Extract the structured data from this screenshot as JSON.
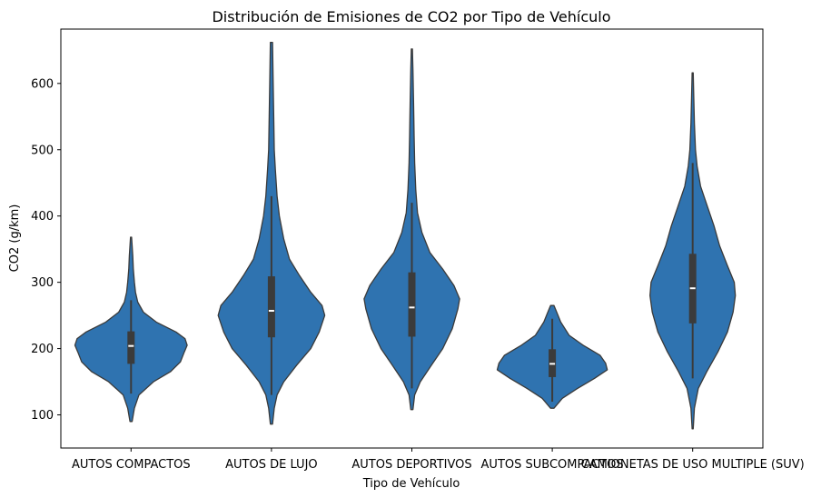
{
  "chart_data": {
    "type": "violin",
    "title": "Distribución de Emisiones de CO2 por Tipo de Vehículo",
    "xlabel": "Tipo de Vehículo",
    "ylabel": "CO2 (g/km)",
    "ylim": [
      50,
      682
    ],
    "yticks": [
      100,
      200,
      300,
      400,
      500,
      600
    ],
    "grid": false,
    "legend": "none",
    "colors": {
      "violin_fill": "#2f73b0",
      "violin_edge": "#3a3a3a",
      "box": "#3b3b3b",
      "median": "#ffffff"
    },
    "categories": [
      "AUTOS COMPACTOS",
      "AUTOS DE LUJO",
      "AUTOS DEPORTIVOS",
      "AUTOS SUBCOMPACTOS",
      "CAMIONETAS DE USO MULTIPLE (SUV)"
    ],
    "distributions": [
      {
        "category": "AUTOS COMPACTOS",
        "min": 90,
        "q1": 177,
        "median": 204,
        "q3": 226,
        "max": 368,
        "whisker_low": 132,
        "whisker_high": 273,
        "density": [
          [
            90,
            0.02
          ],
          [
            110,
            0.06
          ],
          [
            130,
            0.14
          ],
          [
            150,
            0.4
          ],
          [
            165,
            0.7
          ],
          [
            180,
            0.88
          ],
          [
            195,
            0.95
          ],
          [
            205,
            1.0
          ],
          [
            215,
            0.96
          ],
          [
            225,
            0.8
          ],
          [
            240,
            0.45
          ],
          [
            255,
            0.22
          ],
          [
            270,
            0.12
          ],
          [
            285,
            0.08
          ],
          [
            300,
            0.06
          ],
          [
            320,
            0.04
          ],
          [
            340,
            0.03
          ],
          [
            368,
            0.01
          ]
        ]
      },
      {
        "category": "AUTOS DE LUJO",
        "min": 86,
        "q1": 217,
        "median": 257,
        "q3": 309,
        "max": 662,
        "whisker_low": 130,
        "whisker_high": 430,
        "density": [
          [
            86,
            0.02
          ],
          [
            110,
            0.05
          ],
          [
            130,
            0.1
          ],
          [
            150,
            0.22
          ],
          [
            175,
            0.45
          ],
          [
            200,
            0.7
          ],
          [
            225,
            0.85
          ],
          [
            250,
            0.95
          ],
          [
            265,
            0.9
          ],
          [
            285,
            0.7
          ],
          [
            310,
            0.5
          ],
          [
            335,
            0.32
          ],
          [
            365,
            0.22
          ],
          [
            400,
            0.14
          ],
          [
            430,
            0.1
          ],
          [
            470,
            0.07
          ],
          [
            500,
            0.05
          ],
          [
            550,
            0.04
          ],
          [
            600,
            0.03
          ],
          [
            662,
            0.02
          ]
        ]
      },
      {
        "category": "AUTOS DEPORTIVOS",
        "min": 108,
        "q1": 218,
        "median": 262,
        "q3": 315,
        "max": 652,
        "whisker_low": 140,
        "whisker_high": 420,
        "density": [
          [
            108,
            0.02
          ],
          [
            130,
            0.05
          ],
          [
            150,
            0.15
          ],
          [
            175,
            0.35
          ],
          [
            200,
            0.55
          ],
          [
            230,
            0.72
          ],
          [
            260,
            0.82
          ],
          [
            275,
            0.85
          ],
          [
            295,
            0.75
          ],
          [
            320,
            0.55
          ],
          [
            345,
            0.32
          ],
          [
            375,
            0.18
          ],
          [
            405,
            0.1
          ],
          [
            440,
            0.07
          ],
          [
            480,
            0.05
          ],
          [
            520,
            0.04
          ],
          [
            570,
            0.03
          ],
          [
            620,
            0.02
          ],
          [
            652,
            0.01
          ]
        ]
      },
      {
        "category": "AUTOS SUBCOMPACTOS",
        "min": 110,
        "q1": 157,
        "median": 177,
        "q3": 199,
        "max": 265,
        "whisker_low": 120,
        "whisker_high": 245,
        "density": [
          [
            110,
            0.03
          ],
          [
            125,
            0.18
          ],
          [
            140,
            0.45
          ],
          [
            155,
            0.75
          ],
          [
            168,
            0.98
          ],
          [
            178,
            0.95
          ],
          [
            190,
            0.85
          ],
          [
            205,
            0.55
          ],
          [
            220,
            0.3
          ],
          [
            240,
            0.15
          ],
          [
            255,
            0.08
          ],
          [
            265,
            0.03
          ]
        ]
      },
      {
        "category": "CAMIONETAS DE USO MULTIPLE (SUV)",
        "min": 79,
        "q1": 238,
        "median": 291,
        "q3": 343,
        "max": 616,
        "whisker_low": 155,
        "whisker_high": 480,
        "density": [
          [
            79,
            0.01
          ],
          [
            110,
            0.03
          ],
          [
            140,
            0.1
          ],
          [
            165,
            0.25
          ],
          [
            195,
            0.45
          ],
          [
            225,
            0.62
          ],
          [
            255,
            0.72
          ],
          [
            280,
            0.76
          ],
          [
            300,
            0.74
          ],
          [
            325,
            0.62
          ],
          [
            355,
            0.48
          ],
          [
            385,
            0.38
          ],
          [
            415,
            0.26
          ],
          [
            445,
            0.14
          ],
          [
            475,
            0.08
          ],
          [
            500,
            0.05
          ],
          [
            540,
            0.03
          ],
          [
            580,
            0.02
          ],
          [
            616,
            0.01
          ]
        ]
      }
    ]
  }
}
